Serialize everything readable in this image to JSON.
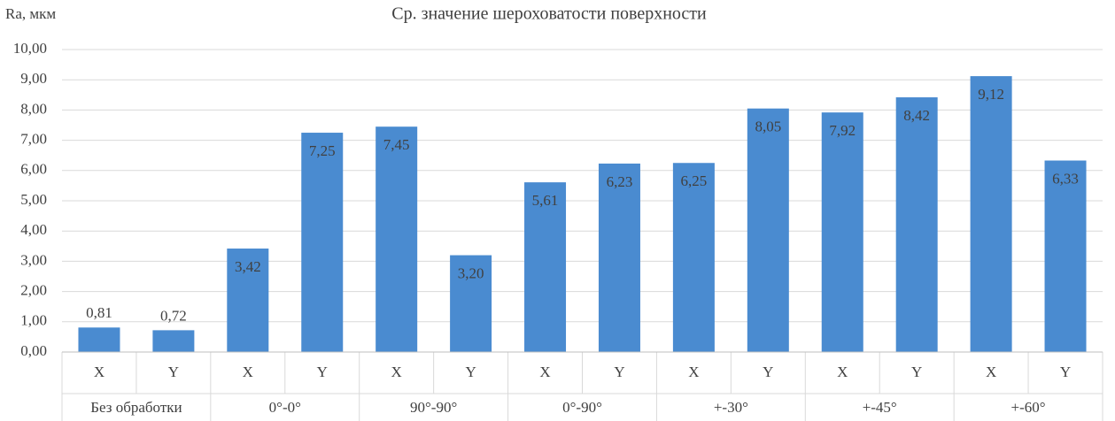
{
  "chart_data": {
    "type": "bar",
    "title": "Ср. значение шероховатости поверхности",
    "y_label": "Ra, мкм",
    "color": "#4a8bd0",
    "grid": true,
    "ylim": [
      0,
      10
    ],
    "yticks": [
      {
        "value": 0,
        "label": "0,00"
      },
      {
        "value": 1,
        "label": "1,00"
      },
      {
        "value": 2,
        "label": "2,00"
      },
      {
        "value": 3,
        "label": "3,00"
      },
      {
        "value": 4,
        "label": "4,00"
      },
      {
        "value": 5,
        "label": "5,00"
      },
      {
        "value": 6,
        "label": "6,00"
      },
      {
        "value": 7,
        "label": "7,00"
      },
      {
        "value": 8,
        "label": "8,00"
      },
      {
        "value": 9,
        "label": "9,00"
      },
      {
        "value": 10,
        "label": "10,00"
      }
    ],
    "groups": [
      {
        "name": "Без обработки",
        "categories": [
          "X",
          "Y"
        ],
        "values": [
          0.81,
          0.72
        ],
        "value_labels": [
          "0,81",
          "0,72"
        ]
      },
      {
        "name": "0°-0°",
        "categories": [
          "X",
          "Y"
        ],
        "values": [
          3.42,
          7.25
        ],
        "value_labels": [
          "3,42",
          "7,25"
        ]
      },
      {
        "name": "90°-90°",
        "categories": [
          "X",
          "Y"
        ],
        "values": [
          7.45,
          3.2
        ],
        "value_labels": [
          "7,45",
          "3,20"
        ]
      },
      {
        "name": "0°-90°",
        "categories": [
          "X",
          "Y"
        ],
        "values": [
          5.61,
          6.23
        ],
        "value_labels": [
          "5,61",
          "6,23"
        ]
      },
      {
        "name": "+-30°",
        "categories": [
          "X",
          "Y"
        ],
        "values": [
          6.25,
          8.05
        ],
        "value_labels": [
          "6,25",
          "8,05"
        ]
      },
      {
        "name": "+-45°",
        "categories": [
          "X",
          "Y"
        ],
        "values": [
          7.92,
          8.42
        ],
        "value_labels": [
          "7,92",
          "8,42"
        ]
      },
      {
        "name": "+-60°",
        "categories": [
          "X",
          "Y"
        ],
        "values": [
          9.12,
          6.33
        ],
        "value_labels": [
          "9,12",
          "6,33"
        ]
      }
    ]
  }
}
